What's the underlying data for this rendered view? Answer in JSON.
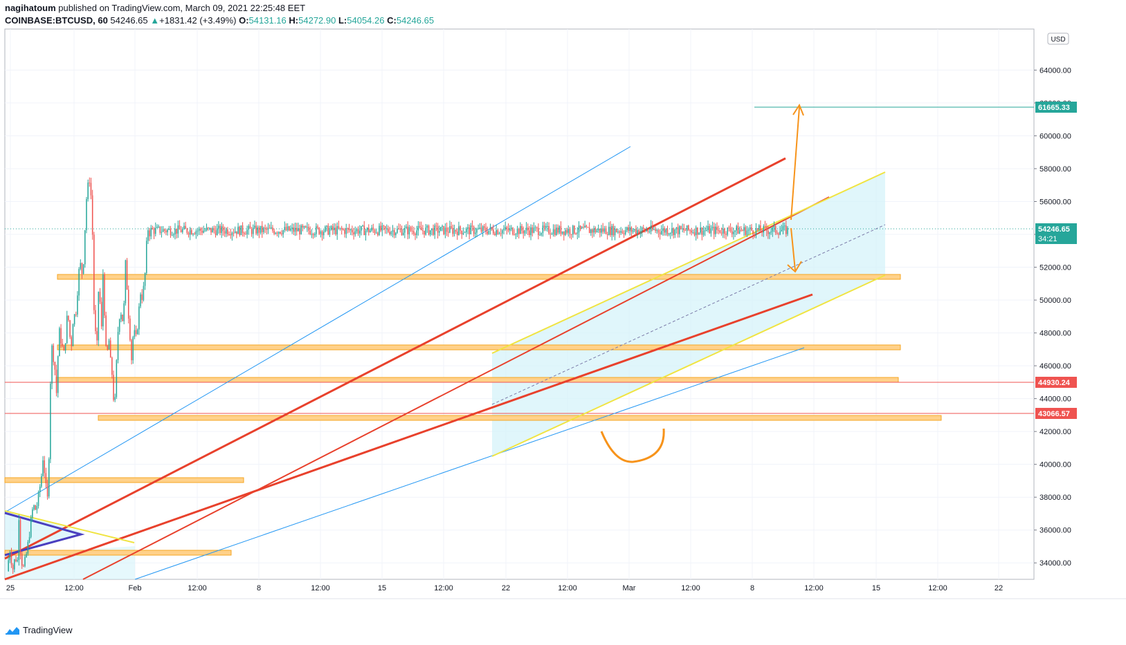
{
  "header": {
    "author": "nagihatoum",
    "published_text": "published on TradingView.com, March 09, 2021 22:25:48 EET",
    "symbol": "COINBASE:BTCUSD, 60",
    "last": "54246.65",
    "change": "+1831.42 (+3.49%)",
    "o_label": "O:",
    "o": "54131.16",
    "h_label": "H:",
    "h": "54272.90",
    "l_label": "L:",
    "l": "54054.26",
    "c_label": "C:",
    "c": "54246.65"
  },
  "footer": {
    "brand": "TradingView"
  },
  "colors": {
    "up": "#26a69a",
    "down": "#ef5350",
    "red_line": "#e8412c",
    "yellow_line": "#f0e442",
    "blue_line": "#2196f3",
    "zone_fill": "#ffd18a",
    "zone_stroke": "#f5a623",
    "channel_fill": "#d6f3fa",
    "arrow": "#f7931a",
    "target": "#26a69a"
  },
  "chart_data": {
    "type": "candlestick",
    "currency_badge": "USD",
    "ylim": [
      33000,
      66500
    ],
    "y_ticks": [
      "34000.00",
      "36000.00",
      "38000.00",
      "40000.00",
      "42000.00",
      "44000.00",
      "46000.00",
      "48000.00",
      "50000.00",
      "52000.00",
      "54000.00",
      "56000.00",
      "58000.00",
      "60000.00",
      "62000.00",
      "64000.00"
    ],
    "x_ticks": [
      "25",
      "12:00",
      "Feb",
      "12:00",
      "8",
      "12:00",
      "15",
      "12:00",
      "22",
      "12:00",
      "Mar",
      "12:00",
      "8",
      "12:00",
      "15",
      "12:00",
      "22"
    ],
    "price_path": [
      [
        0,
        33500
      ],
      [
        2,
        34800
      ],
      [
        4,
        33600
      ],
      [
        6,
        34500
      ],
      [
        7,
        33200
      ],
      [
        8,
        37500
      ],
      [
        9,
        35000
      ],
      [
        10,
        34200
      ],
      [
        11,
        33600
      ],
      [
        12,
        33900
      ],
      [
        14,
        34800
      ],
      [
        16,
        36200
      ],
      [
        18,
        37500
      ],
      [
        20,
        37200
      ],
      [
        22,
        38200
      ],
      [
        24,
        39500
      ],
      [
        25,
        40700
      ],
      [
        26,
        39300
      ],
      [
        27,
        38400
      ],
      [
        28,
        37800
      ],
      [
        29,
        41000
      ],
      [
        30,
        45500
      ],
      [
        31,
        47200
      ],
      [
        32,
        46500
      ],
      [
        33,
        45800
      ],
      [
        34,
        44300
      ],
      [
        35,
        46500
      ],
      [
        36,
        48100
      ],
      [
        37,
        47600
      ],
      [
        38,
        47200
      ],
      [
        39,
        46600
      ],
      [
        40,
        47300
      ],
      [
        41,
        48800
      ],
      [
        42,
        49000
      ],
      [
        43,
        48200
      ],
      [
        44,
        46800
      ],
      [
        45,
        48400
      ],
      [
        46,
        49300
      ],
      [
        47,
        48700
      ],
      [
        48,
        50200
      ],
      [
        49,
        51000
      ],
      [
        50,
        52500
      ],
      [
        51,
        51800
      ],
      [
        52,
        51600
      ],
      [
        53,
        53000
      ],
      [
        54,
        55200
      ],
      [
        55,
        56700
      ],
      [
        56,
        57000
      ],
      [
        57,
        57500
      ],
      [
        58,
        56000
      ],
      [
        58.5,
        55300
      ],
      [
        59,
        53000
      ],
      [
        59.5,
        48000
      ],
      [
        60,
        50300
      ],
      [
        61,
        47500
      ],
      [
        61.5,
        45000
      ],
      [
        62,
        48000
      ],
      [
        63,
        50800
      ],
      [
        64,
        49800
      ],
      [
        65,
        48200
      ],
      [
        66,
        51600
      ],
      [
        67,
        49400
      ],
      [
        68,
        47200
      ],
      [
        68.5,
        45000
      ],
      [
        69,
        46800
      ],
      [
        70,
        47700
      ],
      [
        71,
        46300
      ],
      [
        72,
        45800
      ],
      [
        73,
        44300
      ],
      [
        74,
        43300
      ],
      [
        75,
        45500
      ],
      [
        76,
        47800
      ],
      [
        77,
        48800
      ],
      [
        78,
        49600
      ],
      [
        79,
        48700
      ],
      [
        80,
        49000
      ],
      [
        81,
        50500
      ],
      [
        81.5,
        52300
      ],
      [
        82,
        51600
      ],
      [
        83,
        50000
      ],
      [
        84,
        48300
      ],
      [
        85,
        47500
      ],
      [
        85.5,
        46300
      ],
      [
        86,
        47000
      ],
      [
        87,
        48200
      ],
      [
        88,
        47800
      ],
      [
        89,
        47600
      ],
      [
        90,
        48800
      ],
      [
        91,
        49700
      ],
      [
        92,
        50700
      ],
      [
        93,
        50100
      ],
      [
        94,
        50800
      ],
      [
        95,
        51700
      ],
      [
        96,
        53500
      ],
      [
        97,
        54400
      ],
      [
        98,
        54100
      ],
      [
        99,
        54246
      ]
    ],
    "levels": [
      {
        "price": "61665.33",
        "color": "#26a69a"
      },
      {
        "price": "54246.65",
        "sub": "34:21",
        "color": "#26a69a"
      },
      {
        "price": "44930.24",
        "color": "#ef5350"
      },
      {
        "price": "43066.57",
        "color": "#ef5350"
      }
    ],
    "zones": [
      {
        "y0": 51100,
        "y1": 51400,
        "from": 0,
        "to": 1
      },
      {
        "y0": 46900,
        "y1": 47200,
        "from": 0,
        "to": 1
      },
      {
        "y0": 44900,
        "y1": 45200,
        "from": 0,
        "to": 1
      },
      {
        "y0": 42500,
        "y1": 42800,
        "from": 0,
        "to": 1
      },
      {
        "y0": 39000,
        "y1": 39300,
        "from": 0,
        "to": 1
      },
      {
        "y0": 34500,
        "y1": 34800,
        "from": 0,
        "to": 1
      }
    ]
  }
}
